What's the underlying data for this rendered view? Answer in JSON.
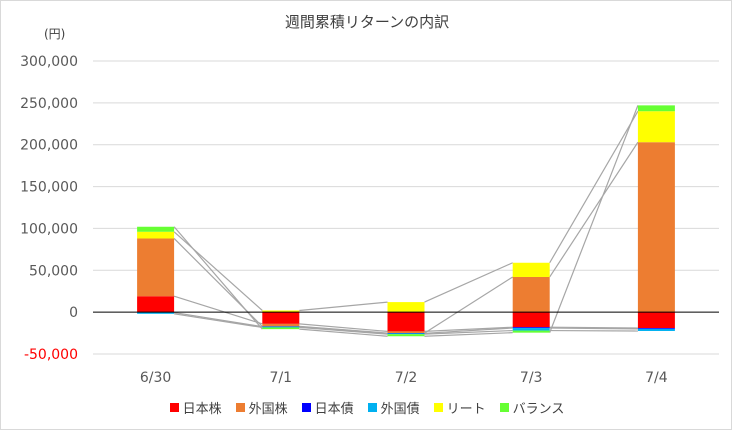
{
  "chart_data": {
    "type": "bar",
    "stacked": true,
    "title": "週間累積リターンの内訳",
    "ylabel": "(円)",
    "xlabel": "",
    "ylim": [
      -50000,
      300000
    ],
    "yticks": [
      {
        "value": 300000,
        "label": "300,000"
      },
      {
        "value": 250000,
        "label": "250,000"
      },
      {
        "value": 200000,
        "label": "200,000"
      },
      {
        "value": 150000,
        "label": "150,000"
      },
      {
        "value": 100000,
        "label": "100,000"
      },
      {
        "value": 50000,
        "label": "50,000"
      },
      {
        "value": 0,
        "label": "0"
      },
      {
        "value": -50000,
        "label": "-50,000"
      }
    ],
    "negative_tick_color": "#ff0000",
    "grid": true,
    "legend_position": "bottom",
    "series_lines": true,
    "categories": [
      "6/30",
      "7/1",
      "7/2",
      "7/3",
      "7/4"
    ],
    "series": [
      {
        "name": "日本株",
        "color": "#ff0000",
        "values": [
          19000,
          -14000,
          -23000,
          -18000,
          -19000
        ]
      },
      {
        "name": "外国株",
        "color": "#ed7d31",
        "values": [
          69000,
          -3000,
          -2000,
          42000,
          203000
        ]
      },
      {
        "name": "日本債",
        "color": "#0000ff",
        "values": [
          -500,
          -300,
          -300,
          -1000,
          -1000
        ]
      },
      {
        "name": "外国債",
        "color": "#00b0f0",
        "values": [
          -1500,
          -1000,
          -1000,
          -3000,
          -2500
        ]
      },
      {
        "name": "リート",
        "color": "#ffff00",
        "values": [
          8000,
          2000,
          12000,
          17000,
          37000
        ]
      },
      {
        "name": "バランス",
        "color": "#66ff33",
        "values": [
          6000,
          -2000,
          -2500,
          -2500,
          7000
        ]
      }
    ]
  }
}
